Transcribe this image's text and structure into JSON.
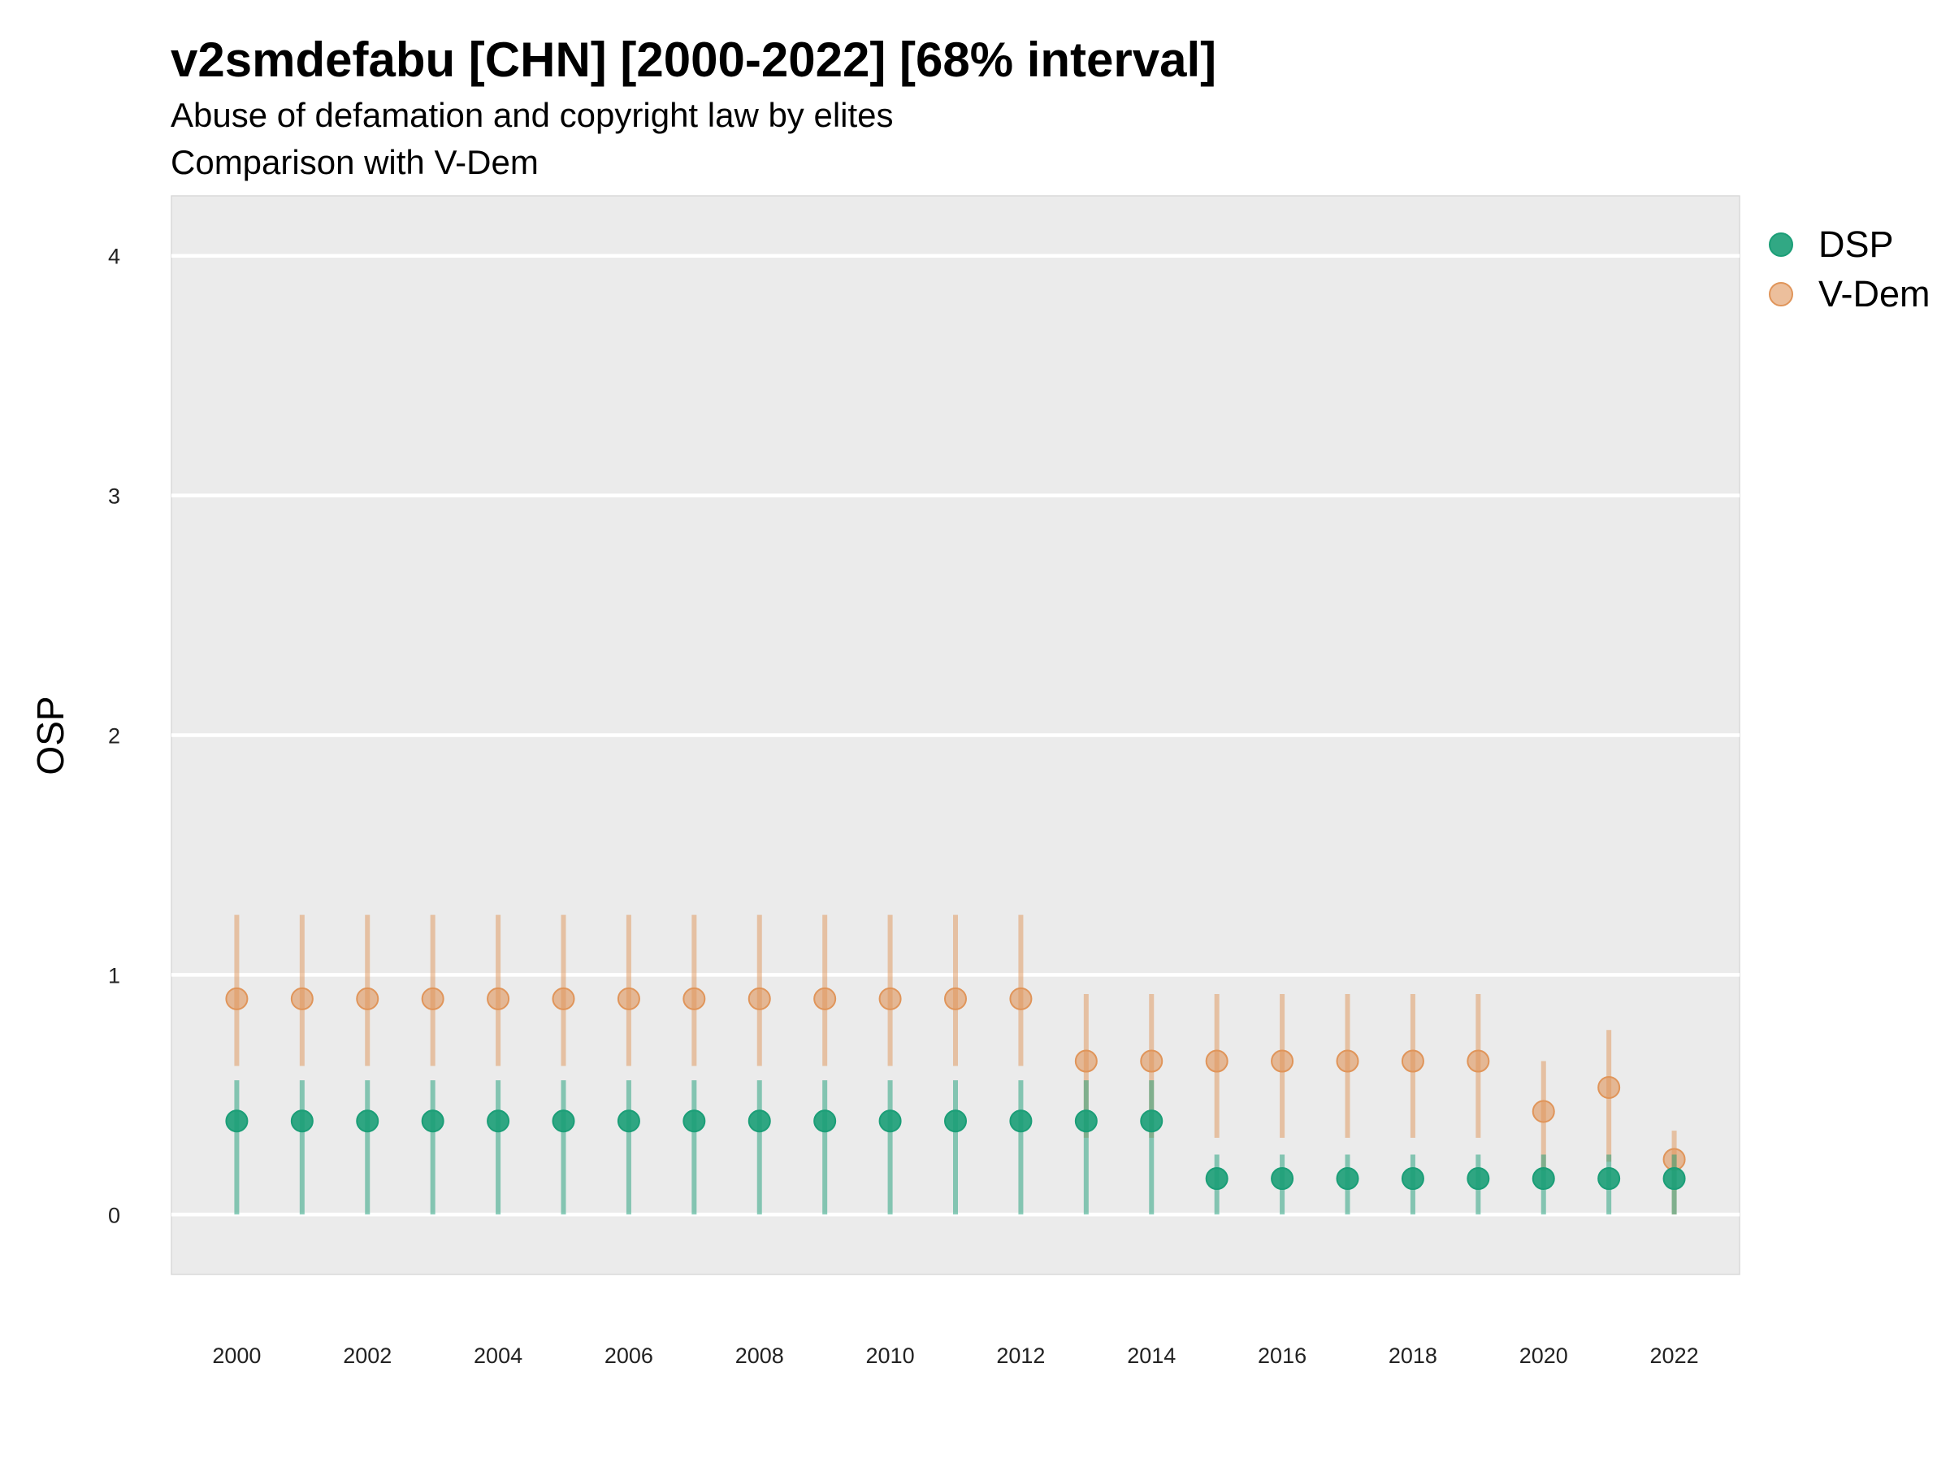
{
  "chart_data": {
    "type": "scatter",
    "title": "v2smdefabu [CHN] [2000-2022] [68% interval]",
    "subtitle": "Abuse of defamation and copyright law by elites",
    "subtitle2": "Comparison with V-Dem",
    "xlabel": "",
    "ylabel": "OSP",
    "xlim": [
      1999,
      2023
    ],
    "ylim": [
      -0.25,
      4.25
    ],
    "x_ticks": [
      "2000",
      "2002",
      "2004",
      "2006",
      "2008",
      "2010",
      "2012",
      "2014",
      "2016",
      "2018",
      "2020",
      "2022"
    ],
    "y_ticks": [
      "0",
      "1",
      "2",
      "3",
      "4"
    ],
    "grid": true,
    "legend_position": "right",
    "x": [
      2000,
      2001,
      2002,
      2003,
      2004,
      2005,
      2006,
      2007,
      2008,
      2009,
      2010,
      2011,
      2012,
      2013,
      2014,
      2015,
      2016,
      2017,
      2018,
      2019,
      2020,
      2021,
      2022
    ],
    "series": [
      {
        "name": "DSP",
        "color": "#1b9e77",
        "values": [
          0.39,
          0.39,
          0.39,
          0.39,
          0.39,
          0.39,
          0.39,
          0.39,
          0.39,
          0.39,
          0.39,
          0.39,
          0.39,
          0.39,
          0.39,
          0.15,
          0.15,
          0.15,
          0.15,
          0.15,
          0.15,
          0.15,
          0.15
        ],
        "lower": [
          0.0,
          0.0,
          0.0,
          0.0,
          0.0,
          0.0,
          0.0,
          0.0,
          0.0,
          0.0,
          0.0,
          0.0,
          0.0,
          0.0,
          0.0,
          0.0,
          0.0,
          0.0,
          0.0,
          0.0,
          0.0,
          0.0,
          0.0
        ],
        "upper": [
          0.56,
          0.56,
          0.56,
          0.56,
          0.56,
          0.56,
          0.56,
          0.56,
          0.56,
          0.56,
          0.56,
          0.56,
          0.56,
          0.56,
          0.56,
          0.25,
          0.25,
          0.25,
          0.25,
          0.25,
          0.25,
          0.25,
          0.25
        ]
      },
      {
        "name": "V-Dem",
        "color": "#e0955a",
        "values": [
          0.9,
          0.9,
          0.9,
          0.9,
          0.9,
          0.9,
          0.9,
          0.9,
          0.9,
          0.9,
          0.9,
          0.9,
          0.9,
          0.64,
          0.64,
          0.64,
          0.64,
          0.64,
          0.64,
          0.64,
          0.43,
          0.53,
          0.23
        ],
        "lower": [
          0.62,
          0.62,
          0.62,
          0.62,
          0.62,
          0.62,
          0.62,
          0.62,
          0.62,
          0.62,
          0.62,
          0.62,
          0.62,
          0.32,
          0.32,
          0.32,
          0.32,
          0.32,
          0.32,
          0.32,
          0.18,
          0.22,
          0.0
        ],
        "upper": [
          1.25,
          1.25,
          1.25,
          1.25,
          1.25,
          1.25,
          1.25,
          1.25,
          1.25,
          1.25,
          1.25,
          1.25,
          1.25,
          0.92,
          0.92,
          0.92,
          0.92,
          0.92,
          0.92,
          0.92,
          0.64,
          0.77,
          0.35
        ]
      }
    ]
  }
}
